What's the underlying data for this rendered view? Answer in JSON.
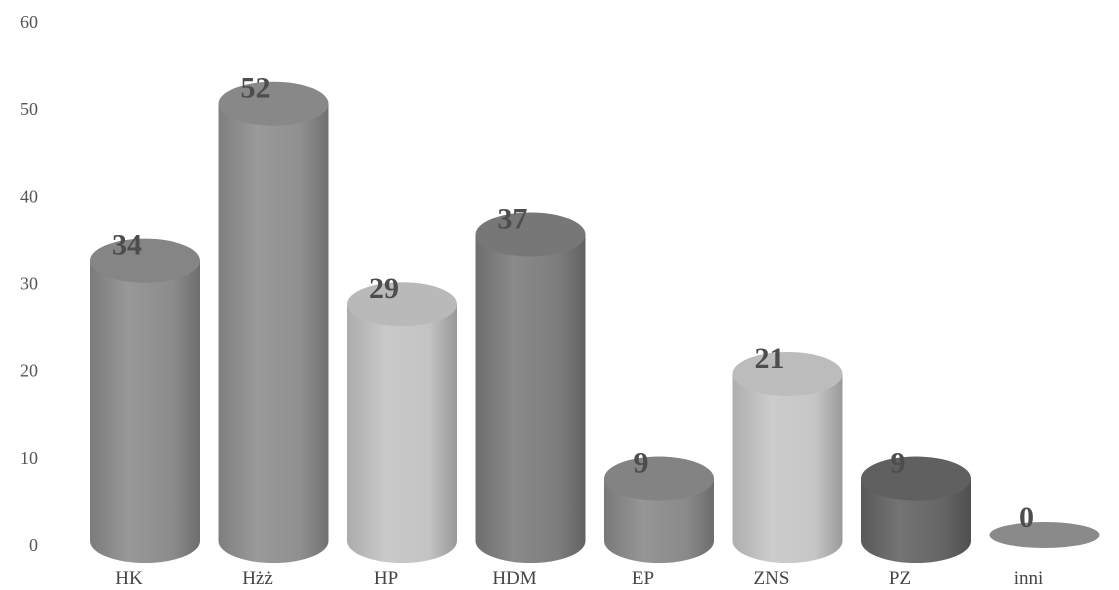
{
  "chart_data": {
    "type": "bar",
    "title": "",
    "xlabel": "",
    "ylabel": "",
    "categories": [
      "HK",
      "Hżż",
      "HP",
      "HDM",
      "EP",
      "ZNS",
      "PZ",
      "inni"
    ],
    "values": [
      34,
      52,
      29,
      37,
      9,
      21,
      9,
      0
    ],
    "data_labels": [
      "34",
      "52",
      "29",
      "37",
      "9",
      "21",
      "9",
      "0"
    ],
    "yticks": [
      "0",
      "10",
      "20",
      "30",
      "40",
      "50",
      "60"
    ],
    "ylim": [
      0,
      60
    ],
    "grid": false,
    "legend": "none",
    "bar_style": "3d-cylinder",
    "colors": [
      "#8c8c8c",
      "#8f8f8f",
      "#c3c3c3",
      "#7d7d7d",
      "#8a8a8a",
      "#c6c6c6",
      "#656565",
      "#8a8a8a"
    ]
  }
}
